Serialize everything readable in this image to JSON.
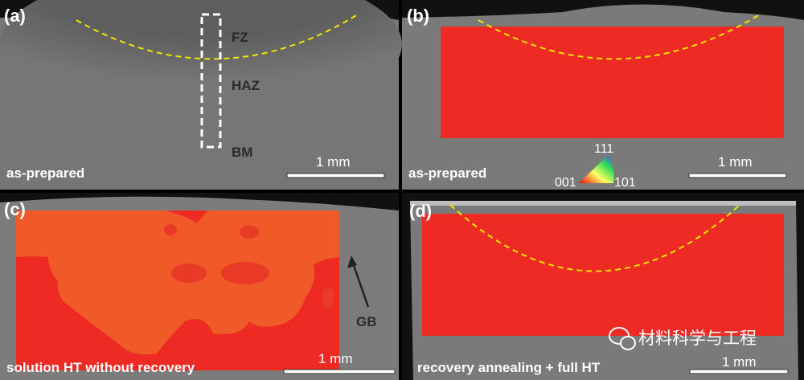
{
  "panels": [
    {
      "id": "(a)",
      "condition": "as-prepared",
      "zones": [
        "FZ",
        "HAZ",
        "BM"
      ],
      "scale_bar": "1 mm"
    },
    {
      "id": "(b)",
      "condition": "as-prepared",
      "scale_bar": "1 mm",
      "ipf_legend": {
        "top": "111",
        "left": "001",
        "right": "101"
      }
    },
    {
      "id": "(c)",
      "condition": "solution HT without recovery",
      "annotation": "GB",
      "scale_bar": "1 mm"
    },
    {
      "id": "(d)",
      "condition": "recovery annealing + full HT",
      "scale_bar": "1 mm"
    }
  ],
  "watermark": {
    "text": "材料科学与工程",
    "icon": "wechat-icon"
  },
  "colors": {
    "ebsd_red": "#ee2a24",
    "ebsd_orange": "#ef5a28",
    "fusion_line": "#f2e600",
    "specimen_gray": "#7a7a7a"
  }
}
